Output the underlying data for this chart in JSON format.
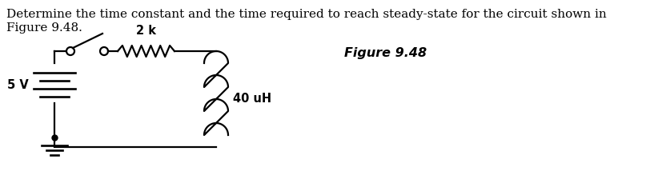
{
  "title_line1": "Determine the time constant and the time required to reach steady-state for the circuit shown in",
  "title_line2": "Figure 9.48.",
  "figure_label": "Figure 9.48",
  "resistor_label": "2 k",
  "inductor_label": "40 uH",
  "voltage_label": "5 V",
  "bg_color": "#ffffff",
  "line_color": "#000000",
  "text_color": "#000000",
  "title_fontsize": 11.0,
  "label_fontsize": 10.5,
  "figure_label_fontsize": 11.5,
  "lw": 1.6
}
